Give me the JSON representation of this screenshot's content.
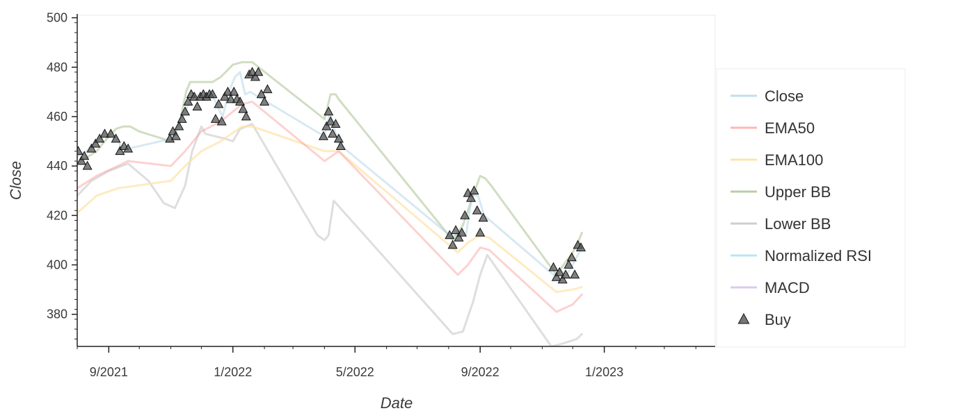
{
  "chart_data": {
    "type": "line",
    "xlabel": "Date",
    "ylabel": "Close",
    "xlim": [
      "2021-08-01",
      "2023-04-20"
    ],
    "ylim": [
      367,
      501
    ],
    "grid": false,
    "legend_position": "right",
    "x_ticks": [
      {
        "date": "2021-09-01",
        "label": "9/2021"
      },
      {
        "date": "2022-01-01",
        "label": "1/2022"
      },
      {
        "date": "2022-05-01",
        "label": "5/2022"
      },
      {
        "date": "2022-09-01",
        "label": "9/2022"
      },
      {
        "date": "2023-01-01",
        "label": "1/2023"
      }
    ],
    "y_ticks": [
      380,
      400,
      420,
      440,
      460,
      480,
      500
    ],
    "series": [
      {
        "name": "Close",
        "color": "#a6cee3",
        "opacity": 0.45,
        "points": [
          [
            "2021-08-01",
            444
          ],
          [
            "2021-08-10",
            446
          ],
          [
            "2021-08-20",
            450
          ],
          [
            "2021-08-28",
            453
          ],
          [
            "2021-09-08",
            452
          ],
          [
            "2021-09-14",
            447
          ],
          [
            "2021-09-20",
            447
          ],
          [
            "2021-11-01",
            451
          ],
          [
            "2021-11-08",
            455
          ],
          [
            "2021-11-15",
            462
          ],
          [
            "2021-11-22",
            468
          ],
          [
            "2021-12-01",
            469
          ],
          [
            "2021-12-08",
            469
          ],
          [
            "2021-12-12",
            469
          ],
          [
            "2021-12-17",
            464
          ],
          [
            "2021-12-22",
            460
          ],
          [
            "2021-12-28",
            470
          ],
          [
            "2022-01-03",
            476
          ],
          [
            "2022-01-08",
            478
          ],
          [
            "2022-01-13",
            469
          ],
          [
            "2022-01-18",
            470
          ],
          [
            "2022-04-01",
            452
          ],
          [
            "2022-04-06",
            461
          ],
          [
            "2022-04-10",
            456
          ],
          [
            "2022-04-15",
            449
          ],
          [
            "2022-08-05",
            411
          ],
          [
            "2022-08-12",
            414
          ],
          [
            "2022-08-18",
            412
          ],
          [
            "2022-08-24",
            428
          ],
          [
            "2022-08-30",
            428
          ],
          [
            "2022-09-05",
            420
          ],
          [
            "2022-11-12",
            396
          ],
          [
            "2022-11-18",
            398
          ],
          [
            "2022-11-25",
            396
          ],
          [
            "2022-12-01",
            400
          ],
          [
            "2022-12-06",
            404
          ],
          [
            "2022-12-10",
            407
          ]
        ]
      },
      {
        "name": "EMA50",
        "color": "#fb9a99",
        "opacity": 0.45,
        "points": [
          [
            "2021-08-01",
            431
          ],
          [
            "2021-08-20",
            436
          ],
          [
            "2021-09-10",
            440
          ],
          [
            "2021-09-20",
            442
          ],
          [
            "2021-11-01",
            440
          ],
          [
            "2021-11-15",
            446
          ],
          [
            "2021-12-01",
            454
          ],
          [
            "2021-12-20",
            458
          ],
          [
            "2022-01-10",
            465
          ],
          [
            "2022-01-20",
            466
          ],
          [
            "2022-04-01",
            442
          ],
          [
            "2022-04-15",
            446
          ],
          [
            "2022-08-10",
            396
          ],
          [
            "2022-08-20",
            400
          ],
          [
            "2022-09-01",
            407
          ],
          [
            "2022-09-10",
            406
          ],
          [
            "2022-11-15",
            381
          ],
          [
            "2022-12-01",
            384
          ],
          [
            "2022-12-10",
            388
          ]
        ]
      },
      {
        "name": "EMA100",
        "color": "#fde3a7",
        "opacity": 0.7,
        "points": [
          [
            "2021-08-01",
            421
          ],
          [
            "2021-08-20",
            428
          ],
          [
            "2021-09-10",
            431
          ],
          [
            "2021-11-01",
            434
          ],
          [
            "2021-11-15",
            440
          ],
          [
            "2021-12-01",
            446
          ],
          [
            "2021-12-20",
            450
          ],
          [
            "2022-01-10",
            456
          ],
          [
            "2022-01-20",
            456
          ],
          [
            "2022-04-01",
            446
          ],
          [
            "2022-04-15",
            446
          ],
          [
            "2022-08-10",
            405
          ],
          [
            "2022-08-20",
            409
          ],
          [
            "2022-09-01",
            412
          ],
          [
            "2022-09-10",
            411
          ],
          [
            "2022-11-15",
            389
          ],
          [
            "2022-12-01",
            390
          ],
          [
            "2022-12-10",
            391
          ]
        ]
      },
      {
        "name": "Upper BB",
        "color": "#a9c18f",
        "opacity": 0.55,
        "points": [
          [
            "2021-08-01",
            441
          ],
          [
            "2021-08-20",
            446
          ],
          [
            "2021-09-01",
            452
          ],
          [
            "2021-09-08",
            455
          ],
          [
            "2021-09-15",
            456
          ],
          [
            "2021-09-22",
            456
          ],
          [
            "2021-10-01",
            454
          ],
          [
            "2021-11-01",
            450
          ],
          [
            "2021-11-10",
            458
          ],
          [
            "2021-11-16",
            470
          ],
          [
            "2021-11-20",
            474
          ],
          [
            "2021-12-01",
            474
          ],
          [
            "2021-12-12",
            474
          ],
          [
            "2021-12-20",
            476
          ],
          [
            "2022-01-01",
            481
          ],
          [
            "2022-01-10",
            482
          ],
          [
            "2022-01-20",
            482
          ],
          [
            "2022-04-01",
            459
          ],
          [
            "2022-04-07",
            469
          ],
          [
            "2022-04-12",
            469
          ],
          [
            "2022-04-15",
            467
          ],
          [
            "2022-08-05",
            410
          ],
          [
            "2022-08-15",
            416
          ],
          [
            "2022-08-25",
            428
          ],
          [
            "2022-09-01",
            436
          ],
          [
            "2022-09-06",
            435
          ],
          [
            "2022-09-12",
            432
          ],
          [
            "2022-11-15",
            396
          ],
          [
            "2022-11-22",
            400
          ],
          [
            "2022-12-01",
            405
          ],
          [
            "2022-12-06",
            409
          ],
          [
            "2022-12-10",
            413
          ]
        ]
      },
      {
        "name": "Lower BB",
        "color": "#bdbdbd",
        "opacity": 0.5,
        "points": [
          [
            "2021-08-01",
            428
          ],
          [
            "2021-08-15",
            434
          ],
          [
            "2021-09-01",
            438
          ],
          [
            "2021-09-20",
            441
          ],
          [
            "2021-10-10",
            434
          ],
          [
            "2021-10-25",
            425
          ],
          [
            "2021-11-05",
            423
          ],
          [
            "2021-11-15",
            432
          ],
          [
            "2021-11-22",
            446
          ],
          [
            "2021-12-01",
            456
          ],
          [
            "2021-12-05",
            453
          ],
          [
            "2021-12-25",
            451
          ],
          [
            "2022-01-01",
            450
          ],
          [
            "2022-01-08",
            455
          ],
          [
            "2022-01-20",
            457
          ],
          [
            "2022-03-25",
            412
          ],
          [
            "2022-04-01",
            410
          ],
          [
            "2022-04-05",
            412
          ],
          [
            "2022-04-10",
            426
          ],
          [
            "2022-08-05",
            372
          ],
          [
            "2022-08-15",
            373
          ],
          [
            "2022-08-25",
            385
          ],
          [
            "2022-09-01",
            396
          ],
          [
            "2022-09-08",
            404
          ],
          [
            "2022-11-10",
            367
          ],
          [
            "2022-11-20",
            368
          ],
          [
            "2022-12-05",
            370
          ],
          [
            "2022-12-10",
            372
          ]
        ]
      },
      {
        "name": "Normalized RSI",
        "color": "#b3e5f2",
        "opacity": 0.7,
        "points": []
      },
      {
        "name": "MACD",
        "color": "#d9c8ec",
        "opacity": 0.7,
        "points": []
      }
    ],
    "buy_markers": {
      "name": "Buy",
      "color": "#555555",
      "points": [
        [
          "2021-08-02",
          446
        ],
        [
          "2021-08-05",
          442
        ],
        [
          "2021-08-08",
          444
        ],
        [
          "2021-08-11",
          440
        ],
        [
          "2021-08-15",
          447
        ],
        [
          "2021-08-19",
          449
        ],
        [
          "2021-08-23",
          451
        ],
        [
          "2021-08-28",
          453
        ],
        [
          "2021-09-03",
          453
        ],
        [
          "2021-09-08",
          451
        ],
        [
          "2021-09-12",
          446
        ],
        [
          "2021-09-16",
          448
        ],
        [
          "2021-09-20",
          447
        ],
        [
          "2021-10-31",
          451
        ],
        [
          "2021-11-03",
          454
        ],
        [
          "2021-11-06",
          452
        ],
        [
          "2021-11-09",
          456
        ],
        [
          "2021-11-12",
          459
        ],
        [
          "2021-11-15",
          462
        ],
        [
          "2021-11-18",
          466
        ],
        [
          "2021-11-21",
          469
        ],
        [
          "2021-11-24",
          468
        ],
        [
          "2021-11-27",
          464
        ],
        [
          "2021-11-30",
          468
        ],
        [
          "2021-12-03",
          469
        ],
        [
          "2021-12-06",
          468
        ],
        [
          "2021-12-09",
          469
        ],
        [
          "2021-12-12",
          469
        ],
        [
          "2021-12-15",
          459
        ],
        [
          "2021-12-18",
          465
        ],
        [
          "2021-12-21",
          458
        ],
        [
          "2021-12-24",
          468
        ],
        [
          "2021-12-27",
          470
        ],
        [
          "2021-12-30",
          467
        ],
        [
          "2022-01-02",
          470
        ],
        [
          "2022-01-05",
          467
        ],
        [
          "2022-01-08",
          466
        ],
        [
          "2022-01-11",
          463
        ],
        [
          "2022-01-14",
          460
        ],
        [
          "2022-01-17",
          477
        ],
        [
          "2022-01-20",
          478
        ],
        [
          "2022-01-23",
          476
        ],
        [
          "2022-01-26",
          478
        ],
        [
          "2022-01-29",
          469
        ],
        [
          "2022-02-01",
          466
        ],
        [
          "2022-02-04",
          471
        ],
        [
          "2022-03-31",
          452
        ],
        [
          "2022-04-03",
          456
        ],
        [
          "2022-04-05",
          462
        ],
        [
          "2022-04-07",
          458
        ],
        [
          "2022-04-09",
          453
        ],
        [
          "2022-04-12",
          457
        ],
        [
          "2022-04-15",
          451
        ],
        [
          "2022-04-17",
          448
        ],
        [
          "2022-08-02",
          412
        ],
        [
          "2022-08-05",
          408
        ],
        [
          "2022-08-08",
          414
        ],
        [
          "2022-08-11",
          411
        ],
        [
          "2022-08-14",
          413
        ],
        [
          "2022-08-17",
          420
        ],
        [
          "2022-08-20",
          429
        ],
        [
          "2022-08-23",
          427
        ],
        [
          "2022-08-26",
          430
        ],
        [
          "2022-08-29",
          422
        ],
        [
          "2022-09-01",
          413
        ],
        [
          "2022-09-04",
          419
        ],
        [
          "2022-11-12",
          399
        ],
        [
          "2022-11-15",
          395
        ],
        [
          "2022-11-18",
          397
        ],
        [
          "2022-11-21",
          394
        ],
        [
          "2022-11-24",
          396
        ],
        [
          "2022-11-27",
          400
        ],
        [
          "2022-11-30",
          403
        ],
        [
          "2022-12-03",
          396
        ],
        [
          "2022-12-06",
          408
        ],
        [
          "2022-12-09",
          407
        ]
      ]
    }
  }
}
